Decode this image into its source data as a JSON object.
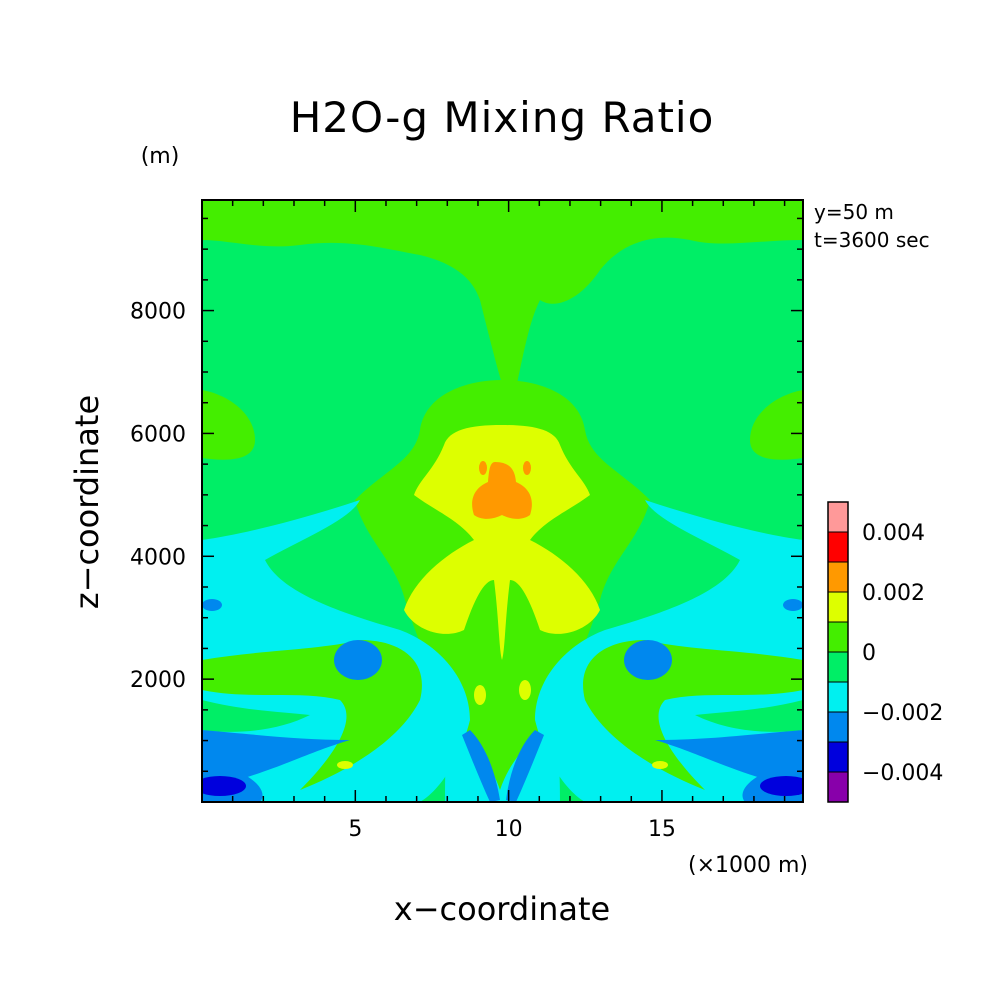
{
  "chart_data": {
    "type": "heatmap",
    "title": "H2O-g Mixing Ratio",
    "xlabel": "x−coordinate",
    "ylabel": "z−coordinate",
    "x_unit": "(×1000 m)",
    "y_unit": "(m)",
    "annotations": [
      "y=50 m",
      "t=3600 sec"
    ],
    "xlim": [
      0,
      19.6
    ],
    "ylim": [
      0,
      9800
    ],
    "x_ticks": [
      5,
      10,
      15
    ],
    "x_tick_labels": [
      "5",
      "10",
      "15"
    ],
    "y_ticks": [
      2000,
      4000,
      6000,
      8000
    ],
    "y_tick_labels": [
      "2000",
      "4000",
      "6000",
      "8000"
    ],
    "colorbar": {
      "levels": [
        -0.005,
        -0.004,
        -0.003,
        -0.002,
        -0.001,
        0,
        0.001,
        0.002,
        0.003,
        0.004,
        0.005
      ],
      "colors": [
        "#8800aa",
        "#0000dd",
        "#0088ee",
        "#00f0f0",
        "#00ee66",
        "#44ee00",
        "#ddff00",
        "#ff9900",
        "#ff0000",
        "#ff9999"
      ],
      "tick_values": [
        -0.004,
        -0.002,
        0,
        0.002,
        0.004
      ],
      "tick_labels": [
        "−0.004",
        "−0.002",
        "0",
        "0.002",
        "0.004"
      ]
    },
    "grid": false
  }
}
